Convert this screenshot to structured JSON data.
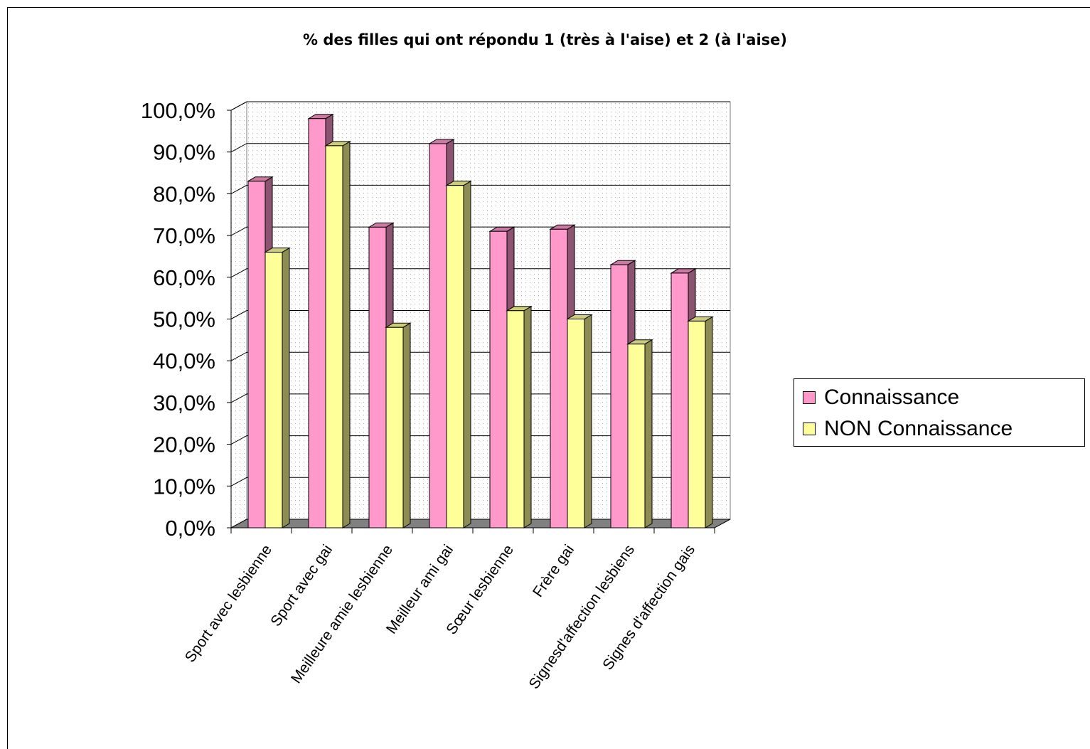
{
  "chart_data": {
    "type": "bar",
    "title": "% des filles qui ont répondu 1 (très à l'aise) et 2 (à l'aise)",
    "xlabel": "",
    "ylabel": "",
    "ylim": [
      0,
      100
    ],
    "y_ticks": [
      "0,0%",
      "10,0%",
      "20,0%",
      "30,0%",
      "40,0%",
      "50,0%",
      "60,0%",
      "70,0%",
      "80,0%",
      "90,0%",
      "100,0%"
    ],
    "categories": [
      "Sport avec lesbienne",
      "Sport avec gai",
      "Meilleure amie lesbienne",
      "Meilleur ami gai",
      "Sœur lesbienne",
      "Frère gai",
      "Signesd'affection lesbiens",
      "Signes d'affection gais"
    ],
    "series": [
      {
        "name": "Connaissance",
        "color": "#ff99cc",
        "values": [
          83.0,
          98.0,
          72.0,
          92.0,
          71.0,
          71.5,
          63.0,
          61.0
        ]
      },
      {
        "name": "NON Connaissance",
        "color": "#ffff99",
        "values": [
          66.0,
          91.5,
          48.0,
          82.0,
          52.0,
          50.0,
          44.0,
          49.5
        ]
      }
    ],
    "grid": true,
    "legend_position": "right"
  }
}
